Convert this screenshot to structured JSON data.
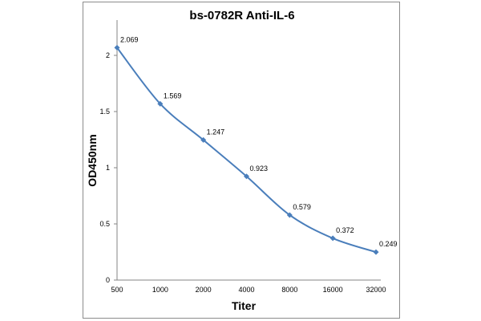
{
  "chart_data": {
    "type": "line",
    "title": "bs-0782R Anti-IL-6",
    "xlabel": "Titer",
    "ylabel": "OD450nm",
    "categories": [
      "500",
      "1000",
      "2000",
      "4000",
      "8000",
      "16000",
      "32000"
    ],
    "series": [
      {
        "values": [
          2.069,
          1.569,
          1.247,
          0.923,
          0.579,
          0.372,
          0.249
        ],
        "data_labels": [
          "2.069",
          "1.569",
          "1.247",
          "0.923",
          "0.579",
          "0.372",
          "0.249"
        ]
      }
    ],
    "ylim": [
      0,
      2.1
    ],
    "yticks": [
      0,
      0.5,
      1,
      1.5,
      2
    ],
    "ytick_labels": [
      "0",
      "0.5",
      "1",
      "1.5",
      "2"
    ],
    "grid": false,
    "legend": "none",
    "line_style": "smoothed",
    "marker": "diamond",
    "colors": {
      "series": "#4a7ebb",
      "axis": "#868686",
      "frame": "#8c8c8c"
    }
  }
}
